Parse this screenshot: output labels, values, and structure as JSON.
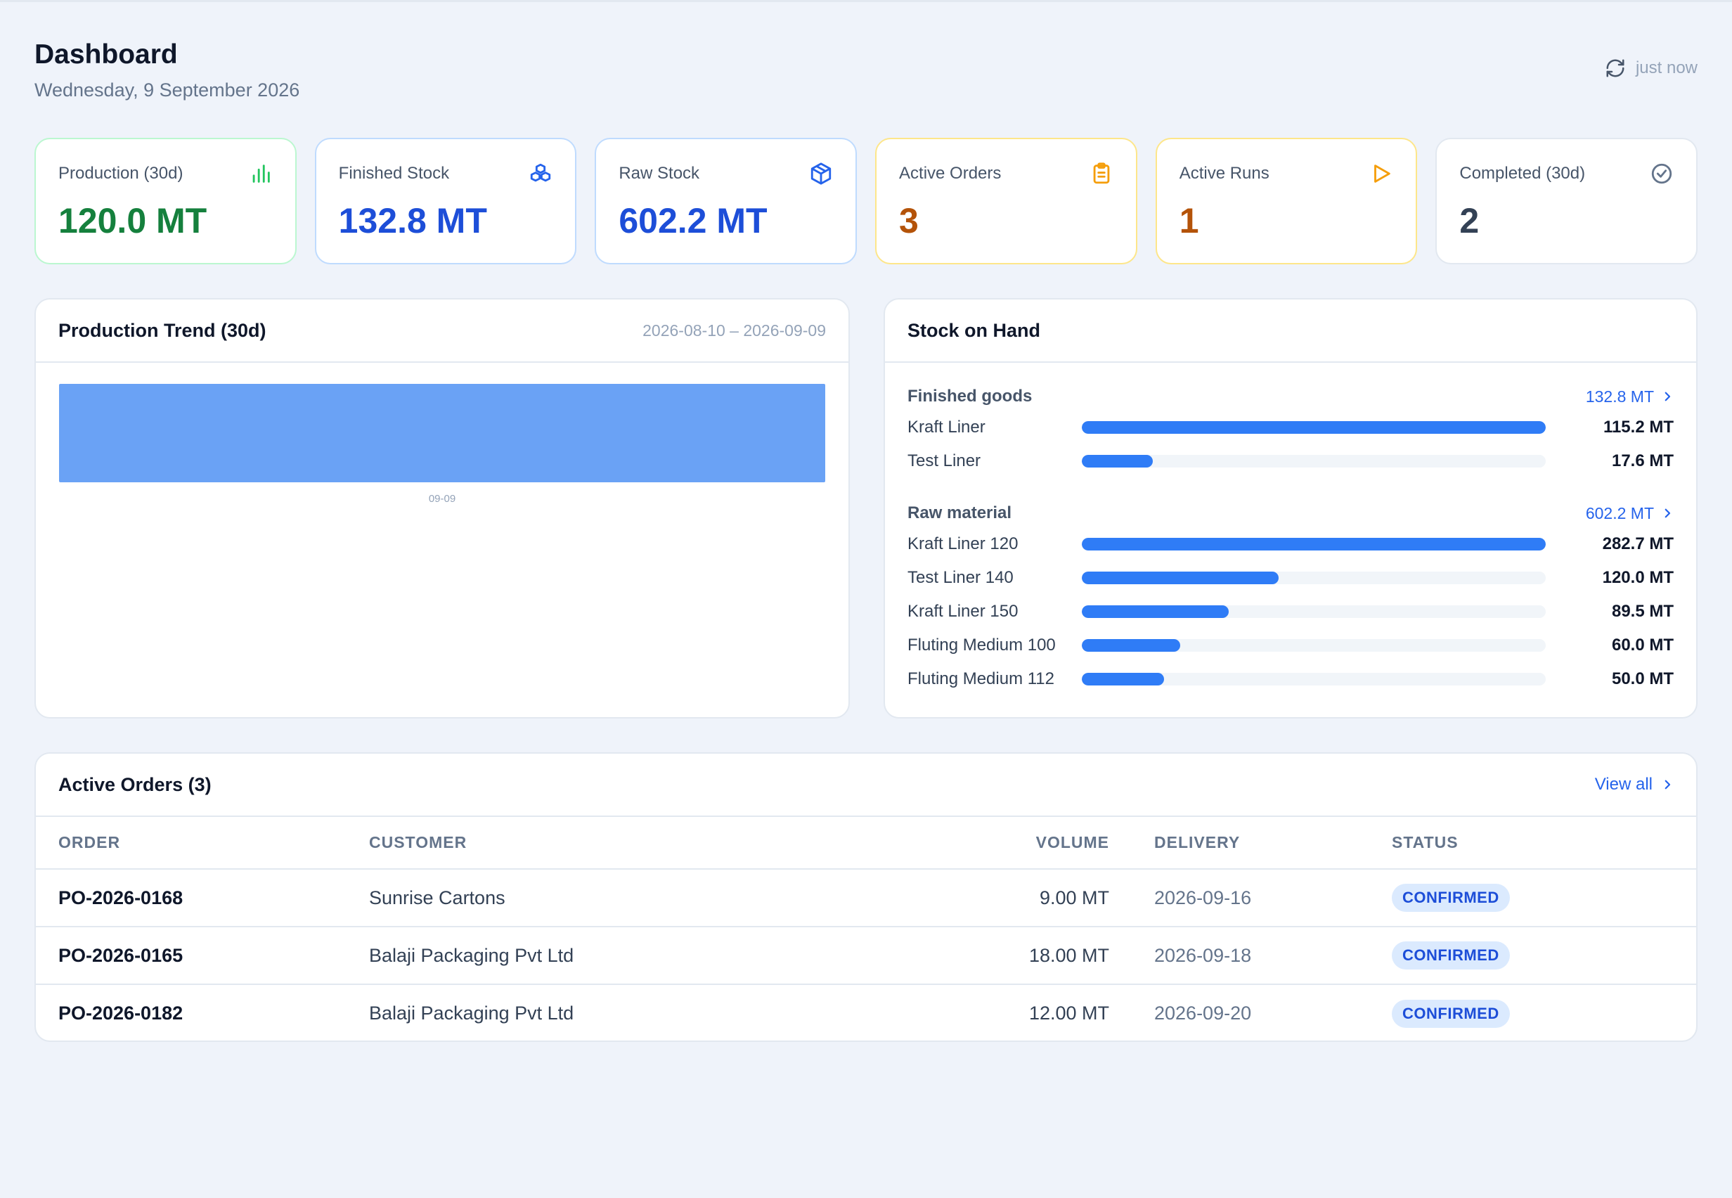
{
  "header": {
    "title": "Dashboard",
    "date": "Wednesday, 9 September 2026",
    "refresh_label": "just now"
  },
  "kpis": [
    {
      "label": "Production (30d)",
      "value": "120.0 MT",
      "icon": "bar-chart-icon"
    },
    {
      "label": "Finished Stock",
      "value": "132.8 MT",
      "icon": "boxes-icon"
    },
    {
      "label": "Raw Stock",
      "value": "602.2 MT",
      "icon": "package-icon"
    },
    {
      "label": "Active Orders",
      "value": "3",
      "icon": "clipboard-icon"
    },
    {
      "label": "Active Runs",
      "value": "1",
      "icon": "play-icon"
    },
    {
      "label": "Completed (30d)",
      "value": "2",
      "icon": "check-circle-icon"
    }
  ],
  "colors": {
    "green": "#15803d",
    "blue": "#1d4ed8",
    "orange": "#b45309",
    "slate": "#334155",
    "bar": "#6aa2f5",
    "stock_bar": "#2f7cf6"
  },
  "trend": {
    "title": "Production Trend (30d)",
    "range": "2026-08-10 – 2026-09-09"
  },
  "chart_data": {
    "type": "bar",
    "categories": [
      "09-09"
    ],
    "values": [
      120.0
    ],
    "title": "Production Trend (30d)",
    "xlabel": "",
    "ylabel": "",
    "grid": false
  },
  "stock": {
    "title": "Stock on Hand",
    "groups": [
      {
        "title": "Finished goods",
        "total": "132.8 MT",
        "items": [
          {
            "name": "Kraft Liner",
            "value": "115.2 MT",
            "fraction": 1.0
          },
          {
            "name": "Test Liner",
            "value": "17.6 MT",
            "fraction": 0.153
          }
        ]
      },
      {
        "title": "Raw material",
        "total": "602.2 MT",
        "items": [
          {
            "name": "Kraft Liner 120",
            "value": "282.7 MT",
            "fraction": 1.0
          },
          {
            "name": "Test Liner 140",
            "value": "120.0 MT",
            "fraction": 0.424
          },
          {
            "name": "Kraft Liner 150",
            "value": "89.5 MT",
            "fraction": 0.317
          },
          {
            "name": "Fluting Medium 100",
            "value": "60.0 MT",
            "fraction": 0.212
          },
          {
            "name": "Fluting Medium 112",
            "value": "50.0 MT",
            "fraction": 0.177
          }
        ]
      }
    ]
  },
  "orders": {
    "title": "Active Orders (3)",
    "view_all": "View all",
    "columns": [
      "ORDER",
      "CUSTOMER",
      "VOLUME",
      "DELIVERY",
      "STATUS"
    ],
    "rows": [
      {
        "order": "PO-2026-0168",
        "customer": "Sunrise Cartons",
        "volume": "9.00 MT",
        "delivery": "2026-09-16",
        "status": "CONFIRMED"
      },
      {
        "order": "PO-2026-0165",
        "customer": "Balaji Packaging Pvt Ltd",
        "volume": "18.00 MT",
        "delivery": "2026-09-18",
        "status": "CONFIRMED"
      },
      {
        "order": "PO-2026-0182",
        "customer": "Balaji Packaging Pvt Ltd",
        "volume": "12.00 MT",
        "delivery": "2026-09-20",
        "status": "CONFIRMED"
      }
    ]
  }
}
